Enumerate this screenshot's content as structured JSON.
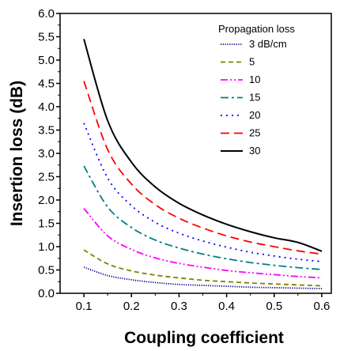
{
  "chart_data": {
    "type": "line",
    "xlabel": "Coupling coefficient",
    "ylabel": "Insertion loss (dB)",
    "xlim": [
      0.05,
      0.62
    ],
    "ylim": [
      0.0,
      6.0
    ],
    "x_ticks": [
      0.1,
      0.2,
      0.3,
      0.4,
      0.5,
      0.6
    ],
    "x_tick_labels": [
      "0.1",
      "0.2",
      "0.3",
      "0.4",
      "0.5",
      "0.6"
    ],
    "y_ticks": [
      0.0,
      0.5,
      1.0,
      1.5,
      2.0,
      2.5,
      3.0,
      3.5,
      4.0,
      4.5,
      5.0,
      5.5,
      6.0
    ],
    "y_tick_labels": [
      "0.0",
      "0.5",
      "1.0",
      "1.5",
      "2.0",
      "2.5",
      "3.0",
      "3.5",
      "4.0",
      "4.5",
      "5.0",
      "5.5",
      "6.0"
    ],
    "grid": false,
    "legend_title": "Propagation loss",
    "legend_position": "top-right",
    "x": [
      0.1,
      0.15,
      0.2,
      0.25,
      0.3,
      0.35,
      0.4,
      0.45,
      0.5,
      0.55,
      0.6
    ],
    "series": [
      {
        "name": "3 dB/cm",
        "color": "#00008b",
        "dash": "dotted-fine",
        "values": [
          0.56,
          0.38,
          0.29,
          0.23,
          0.19,
          0.17,
          0.15,
          0.13,
          0.12,
          0.11,
          0.1
        ]
      },
      {
        "name": "5",
        "color": "#808000",
        "dash": "dashed",
        "values": [
          0.93,
          0.63,
          0.48,
          0.39,
          0.33,
          0.28,
          0.25,
          0.22,
          0.2,
          0.18,
          0.16
        ]
      },
      {
        "name": "10",
        "color": "#ff00ff",
        "dash": "dash-dot-dot",
        "values": [
          1.82,
          1.23,
          0.94,
          0.76,
          0.64,
          0.56,
          0.49,
          0.44,
          0.4,
          0.36,
          0.33
        ]
      },
      {
        "name": "15",
        "color": "#008080",
        "dash": "dash-dot",
        "values": [
          2.73,
          1.85,
          1.41,
          1.14,
          0.97,
          0.84,
          0.74,
          0.66,
          0.6,
          0.55,
          0.51
        ]
      },
      {
        "name": "20",
        "color": "#0000ff",
        "dash": "dotted",
        "values": [
          3.65,
          2.47,
          1.88,
          1.52,
          1.29,
          1.12,
          0.99,
          0.88,
          0.8,
          0.73,
          0.68
        ]
      },
      {
        "name": "25",
        "color": "#ff0000",
        "dash": "long-dashed",
        "values": [
          4.55,
          3.08,
          2.34,
          1.9,
          1.61,
          1.4,
          1.23,
          1.1,
          1.0,
          0.91,
          0.84
        ]
      },
      {
        "name": "30",
        "color": "#000000",
        "dash": "solid",
        "values": [
          5.45,
          3.7,
          2.81,
          2.28,
          1.93,
          1.68,
          1.48,
          1.32,
          1.19,
          1.09,
          0.9
        ]
      }
    ]
  }
}
